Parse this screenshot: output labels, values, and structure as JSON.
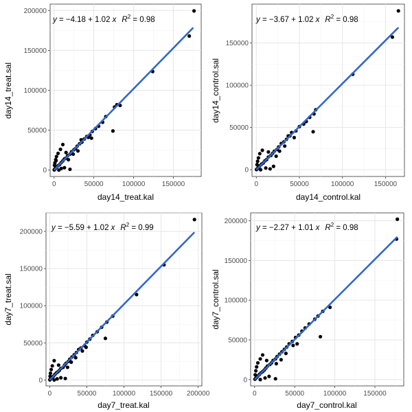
{
  "figure": {
    "background": "#ffffff",
    "point_color": "#000000",
    "fit_color": "#3366cc"
  },
  "chart_data": [
    {
      "id": "day14_treat",
      "type": "scatter",
      "xlabel": "day14_treat.kal",
      "ylabel": "day14_treat.sal",
      "xlim": [
        -5000,
        185000
      ],
      "ylim": [
        -8000,
        208000
      ],
      "xticks": [
        0,
        50000,
        100000,
        150000
      ],
      "xtick_labels": [
        "0",
        "50000",
        "100000",
        "150000"
      ],
      "yticks": [
        0,
        50000,
        100000,
        150000,
        200000
      ],
      "ytick_labels": [
        "0",
        "50000",
        "100000",
        "150000",
        "200000"
      ],
      "equation": {
        "y_text": "y",
        "eq_sign": " = ",
        "intercept": "−4.18",
        "plus": " + ",
        "slope": "1.02",
        "x_text": " x",
        "r_label": "R",
        "r_power": "2",
        "r_eq": " = ",
        "r2": "0.98"
      },
      "fit": {
        "intercept": -4.18,
        "slope": 1.02,
        "x_range": [
          0,
          175000
        ]
      },
      "points": [
        [
          176000,
          199500
        ],
        [
          170000,
          168000
        ],
        [
          124000,
          123500
        ],
        [
          83000,
          81000
        ],
        [
          79000,
          82000
        ],
        [
          76000,
          79000
        ],
        [
          74000,
          49000
        ],
        [
          65000,
          67000
        ],
        [
          61000,
          60000
        ],
        [
          56000,
          55000
        ],
        [
          52000,
          52000
        ],
        [
          48000,
          48500
        ],
        [
          45000,
          44000
        ],
        [
          41000,
          42000
        ],
        [
          38000,
          39000
        ],
        [
          35000,
          35000
        ],
        [
          32000,
          33000
        ],
        [
          29000,
          30000
        ],
        [
          27000,
          27000
        ],
        [
          25000,
          25500
        ],
        [
          22000,
          23000
        ],
        [
          20000,
          20000
        ],
        [
          17000,
          18000
        ],
        [
          15000,
          15000
        ],
        [
          13000,
          14000
        ],
        [
          11000,
          11500
        ],
        [
          9000,
          9500
        ],
        [
          7000,
          7000
        ],
        [
          5000,
          5500
        ],
        [
          3000,
          3500
        ],
        [
          1500,
          2000
        ],
        [
          500,
          800
        ],
        [
          200,
          300
        ],
        [
          11000,
          32000
        ],
        [
          8000,
          26000
        ],
        [
          5000,
          21000
        ],
        [
          3000,
          17000
        ],
        [
          2000,
          13000
        ],
        [
          1000,
          9000
        ],
        [
          500,
          6000
        ],
        [
          9000,
          2000
        ],
        [
          13000,
          3000
        ],
        [
          20000,
          1000
        ],
        [
          6000,
          0
        ],
        [
          2500,
          12000
        ],
        [
          15000,
          22000
        ],
        [
          18000,
          13000
        ],
        [
          24000,
          20000
        ],
        [
          30000,
          24000
        ],
        [
          34000,
          38000
        ],
        [
          43000,
          41000
        ],
        [
          47000,
          40000
        ]
      ]
    },
    {
      "id": "day14_control",
      "type": "scatter",
      "xlabel": "day14_control.kal",
      "ylabel": "day14_control.sal",
      "xlim": [
        -5000,
        172000
      ],
      "ylim": [
        -8000,
        196000
      ],
      "xticks": [
        0,
        50000,
        100000,
        150000
      ],
      "xtick_labels": [
        "0",
        "50000",
        "100000",
        "150000"
      ],
      "yticks": [
        0,
        50000,
        100000,
        150000
      ],
      "ytick_labels": [
        "0",
        "50000",
        "100000",
        "150000"
      ],
      "equation": {
        "y_text": "y",
        "eq_sign": " = ",
        "intercept": "−3.67",
        "plus": " + ",
        "slope": "1.02",
        "x_text": " x",
        "r_label": "R",
        "r_power": "2",
        "r_eq": " = ",
        "r2": "0.98"
      },
      "fit": {
        "intercept": -3.67,
        "slope": 1.02,
        "x_range": [
          0,
          165000
        ]
      },
      "points": [
        [
          165000,
          188000
        ],
        [
          158000,
          157000
        ],
        [
          112000,
          113000
        ],
        [
          69000,
          71000
        ],
        [
          67000,
          66000
        ],
        [
          66000,
          45000
        ],
        [
          62000,
          62000
        ],
        [
          58000,
          57000
        ],
        [
          55000,
          54000
        ],
        [
          50000,
          51000
        ],
        [
          46000,
          46000
        ],
        [
          41000,
          44000
        ],
        [
          39000,
          40000
        ],
        [
          35000,
          36000
        ],
        [
          32000,
          33000
        ],
        [
          29000,
          31000
        ],
        [
          26000,
          27000
        ],
        [
          24000,
          24000
        ],
        [
          21000,
          22000
        ],
        [
          19000,
          19500
        ],
        [
          17000,
          17000
        ],
        [
          14000,
          15000
        ],
        [
          12000,
          12000
        ],
        [
          10000,
          10500
        ],
        [
          8000,
          8000
        ],
        [
          6000,
          6500
        ],
        [
          4000,
          4500
        ],
        [
          2500,
          3000
        ],
        [
          1500,
          1500
        ],
        [
          500,
          700
        ],
        [
          200,
          200
        ],
        [
          7000,
          23000
        ],
        [
          4000,
          19000
        ],
        [
          2500,
          14000
        ],
        [
          1500,
          10000
        ],
        [
          800,
          6000
        ],
        [
          11000,
          2000
        ],
        [
          16000,
          1000
        ],
        [
          20000,
          4000
        ],
        [
          5000,
          0
        ],
        [
          14000,
          21000
        ],
        [
          23000,
          16000
        ],
        [
          27000,
          22000
        ],
        [
          33000,
          28000
        ],
        [
          37000,
          40000
        ],
        [
          44000,
          38000
        ]
      ]
    },
    {
      "id": "day7_treat",
      "type": "scatter",
      "xlabel": "day7_treat.kal",
      "ylabel": "day7_treat.sal",
      "xlim": [
        -5000,
        205000
      ],
      "ylim": [
        -8000,
        225000
      ],
      "xticks": [
        0,
        50000,
        100000,
        150000,
        200000
      ],
      "xtick_labels": [
        "0",
        "50000",
        "100000",
        "150000",
        "200000"
      ],
      "yticks": [
        0,
        50000,
        100000,
        150000,
        200000
      ],
      "ytick_labels": [
        "0",
        "50000",
        "100000",
        "150000",
        "200000"
      ],
      "equation": {
        "y_text": "y",
        "eq_sign": " = ",
        "intercept": "−5.59",
        "plus": " + ",
        "slope": "1.02",
        "x_text": " x",
        "r_label": "R",
        "r_power": "2",
        "r_eq": " = ",
        "r2": "0.99"
      },
      "fit": {
        "intercept": -5.59,
        "slope": 1.02,
        "x_range": [
          0,
          195000
        ]
      },
      "points": [
        [
          195000,
          216000
        ],
        [
          154000,
          155000
        ],
        [
          117000,
          115000
        ],
        [
          85000,
          86000
        ],
        [
          77000,
          78000
        ],
        [
          75000,
          56000
        ],
        [
          70000,
          71000
        ],
        [
          64000,
          65000
        ],
        [
          58000,
          60000
        ],
        [
          54000,
          55000
        ],
        [
          50000,
          51000
        ],
        [
          47000,
          46000
        ],
        [
          42000,
          43000
        ],
        [
          39000,
          41000
        ],
        [
          36000,
          37000
        ],
        [
          33000,
          34000
        ],
        [
          30000,
          31000
        ],
        [
          27000,
          28000
        ],
        [
          25000,
          25000
        ],
        [
          22000,
          22500
        ],
        [
          20000,
          20000
        ],
        [
          18000,
          17000
        ],
        [
          15000,
          15500
        ],
        [
          13000,
          13000
        ],
        [
          11000,
          11000
        ],
        [
          9000,
          9500
        ],
        [
          7000,
          7500
        ],
        [
          5000,
          5000
        ],
        [
          3000,
          3500
        ],
        [
          1500,
          2000
        ],
        [
          500,
          800
        ],
        [
          200,
          200
        ],
        [
          6000,
          26000
        ],
        [
          3500,
          19000
        ],
        [
          2000,
          14000
        ],
        [
          1000,
          9000
        ],
        [
          500,
          5000
        ],
        [
          10000,
          1500
        ],
        [
          15000,
          3000
        ],
        [
          21000,
          2000
        ],
        [
          6000,
          0
        ],
        [
          12000,
          20000
        ],
        [
          24000,
          17000
        ],
        [
          29000,
          24000
        ],
        [
          35000,
          30000
        ],
        [
          44000,
          39000
        ],
        [
          49000,
          44000
        ]
      ]
    },
    {
      "id": "day7_control",
      "type": "scatter",
      "xlabel": "day7_control.kal",
      "ylabel": "day7_control.sal",
      "xlim": [
        -5000,
        186000
      ],
      "ylim": [
        -8000,
        210000
      ],
      "xticks": [
        0,
        50000,
        100000,
        150000
      ],
      "xtick_labels": [
        "0",
        "50000",
        "100000",
        "150000"
      ],
      "yticks": [
        0,
        50000,
        100000,
        150000,
        200000
      ],
      "ytick_labels": [
        "0",
        "50000",
        "100000",
        "150000",
        "200000"
      ],
      "equation": {
        "y_text": "y",
        "eq_sign": " = ",
        "intercept": "−2.27",
        "plus": " + ",
        "slope": "1.01",
        "x_text": " x",
        "r_label": "R",
        "r_power": "2",
        "r_eq": " = ",
        "r2": "0.98"
      },
      "fit": {
        "intercept": -2.27,
        "slope": 1.01,
        "x_range": [
          0,
          178000
        ]
      },
      "points": [
        [
          178000,
          202000
        ],
        [
          177000,
          177000
        ],
        [
          94000,
          91000
        ],
        [
          85000,
          86000
        ],
        [
          82000,
          54000
        ],
        [
          79000,
          80000
        ],
        [
          75000,
          76000
        ],
        [
          68000,
          70000
        ],
        [
          63000,
          65000
        ],
        [
          59000,
          61000
        ],
        [
          55000,
          56000
        ],
        [
          51000,
          53000
        ],
        [
          47000,
          48000
        ],
        [
          43000,
          45000
        ],
        [
          40000,
          41000
        ],
        [
          37000,
          38000
        ],
        [
          34000,
          35000
        ],
        [
          31000,
          32000
        ],
        [
          28000,
          29000
        ],
        [
          26000,
          26000
        ],
        [
          23000,
          24000
        ],
        [
          21000,
          21000
        ],
        [
          19000,
          19000
        ],
        [
          16000,
          17000
        ],
        [
          14000,
          14500
        ],
        [
          12000,
          12000
        ],
        [
          10000,
          10000
        ],
        [
          8000,
          8500
        ],
        [
          6000,
          6500
        ],
        [
          4000,
          4500
        ],
        [
          2500,
          2800
        ],
        [
          1200,
          1500
        ],
        [
          400,
          500
        ],
        [
          10000,
          31000
        ],
        [
          7000,
          26000
        ],
        [
          4000,
          21000
        ],
        [
          2500,
          16000
        ],
        [
          1500,
          11000
        ],
        [
          700,
          6000
        ],
        [
          13000,
          2000
        ],
        [
          18000,
          4000
        ],
        [
          26000,
          1000
        ],
        [
          7000,
          0
        ],
        [
          15000,
          24000
        ],
        [
          27000,
          20000
        ],
        [
          33000,
          25000
        ],
        [
          39000,
          33000
        ],
        [
          48000,
          43000
        ],
        [
          53000,
          45000
        ]
      ]
    }
  ]
}
